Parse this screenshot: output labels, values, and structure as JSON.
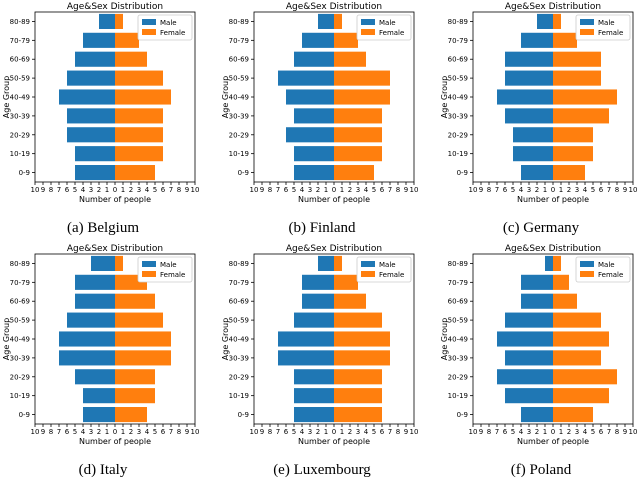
{
  "chart_data": [
    {
      "type": "bar",
      "orientation": "horizontal-population-pyramid",
      "caption": "(a)  Belgium",
      "title": "Age&Sex Distribution",
      "xlabel": "Number of people",
      "ylabel": "Age Group",
      "categories": [
        "0-9",
        "10-19",
        "20-29",
        "30-39",
        "40-49",
        "50-59",
        "60-69",
        "70-79",
        "80-89"
      ],
      "xlim": [
        -10,
        10
      ],
      "xticks": [
        "10",
        "9",
        "8",
        "7",
        "6",
        "5",
        "4",
        "3",
        "2",
        "1",
        "0",
        "1",
        "2",
        "3",
        "4",
        "5",
        "6",
        "7",
        "8",
        "9",
        "10"
      ],
      "legend": [
        "Male",
        "Female"
      ],
      "legend_position": "top-right",
      "series": [
        {
          "name": "Male",
          "values": [
            5,
            5,
            6,
            6,
            7,
            6,
            5,
            4,
            2
          ]
        },
        {
          "name": "Female",
          "values": [
            5,
            6,
            6,
            6,
            7,
            6,
            4,
            3,
            1
          ]
        }
      ]
    },
    {
      "type": "bar",
      "orientation": "horizontal-population-pyramid",
      "caption": "(b)  Finland",
      "title": "Age&Sex Distribution",
      "xlabel": "Number of people",
      "ylabel": "Age Group",
      "categories": [
        "0-9",
        "10-19",
        "20-29",
        "30-39",
        "40-49",
        "50-59",
        "60-69",
        "70-79",
        "80-89"
      ],
      "xlim": [
        -10,
        10
      ],
      "xticks": [
        "10",
        "9",
        "8",
        "7",
        "6",
        "5",
        "4",
        "3",
        "2",
        "1",
        "0",
        "1",
        "2",
        "3",
        "4",
        "5",
        "6",
        "7",
        "8",
        "9",
        "10"
      ],
      "legend": [
        "Male",
        "Female"
      ],
      "legend_position": "top-right",
      "series": [
        {
          "name": "Male",
          "values": [
            5,
            5,
            6,
            5,
            6,
            7,
            5,
            4,
            2
          ]
        },
        {
          "name": "Female",
          "values": [
            5,
            6,
            6,
            6,
            7,
            7,
            4,
            3,
            1
          ]
        }
      ]
    },
    {
      "type": "bar",
      "orientation": "horizontal-population-pyramid",
      "caption": "(c)  Germany",
      "title": "Age&Sex Distribution",
      "xlabel": "Number of people",
      "ylabel": "Age Group",
      "categories": [
        "0-9",
        "10-19",
        "20-29",
        "30-39",
        "40-49",
        "50-59",
        "60-69",
        "70-79",
        "80-89"
      ],
      "xlim": [
        -10,
        10
      ],
      "xticks": [
        "10",
        "9",
        "8",
        "7",
        "6",
        "5",
        "4",
        "3",
        "2",
        "1",
        "0",
        "1",
        "2",
        "3",
        "4",
        "5",
        "6",
        "7",
        "8",
        "9",
        "10"
      ],
      "legend": [
        "Male",
        "Female"
      ],
      "legend_position": "top-right",
      "series": [
        {
          "name": "Male",
          "values": [
            4,
            5,
            5,
            6,
            7,
            6,
            6,
            4,
            2
          ]
        },
        {
          "name": "Female",
          "values": [
            4,
            5,
            5,
            7,
            8,
            6,
            6,
            3,
            1
          ]
        }
      ]
    },
    {
      "type": "bar",
      "orientation": "horizontal-population-pyramid",
      "caption": "(d)  Italy",
      "title": "Age&Sex Distribution",
      "xlabel": "Number of people",
      "ylabel": "Age Group",
      "categories": [
        "0-9",
        "10-19",
        "20-29",
        "30-39",
        "40-49",
        "50-59",
        "60-69",
        "70-79",
        "80-89"
      ],
      "xlim": [
        -10,
        10
      ],
      "xticks": [
        "10",
        "9",
        "8",
        "7",
        "6",
        "5",
        "4",
        "3",
        "2",
        "1",
        "0",
        "1",
        "2",
        "3",
        "4",
        "5",
        "6",
        "7",
        "8",
        "9",
        "10"
      ],
      "legend": [
        "Male",
        "Female"
      ],
      "legend_position": "top-right",
      "series": [
        {
          "name": "Male",
          "values": [
            4,
            4,
            5,
            7,
            7,
            6,
            5,
            5,
            3
          ]
        },
        {
          "name": "Female",
          "values": [
            4,
            5,
            5,
            7,
            7,
            6,
            5,
            4,
            1
          ]
        }
      ]
    },
    {
      "type": "bar",
      "orientation": "horizontal-population-pyramid",
      "caption": "(e)  Luxembourg",
      "title": "Age&Sex Distribution",
      "xlabel": "Number of people",
      "ylabel": "Age Group",
      "categories": [
        "0-9",
        "10-19",
        "20-29",
        "30-39",
        "40-49",
        "50-59",
        "60-69",
        "70-79",
        "80-89"
      ],
      "xlim": [
        -10,
        10
      ],
      "xticks": [
        "10",
        "9",
        "8",
        "7",
        "6",
        "5",
        "4",
        "3",
        "2",
        "1",
        "0",
        "1",
        "2",
        "3",
        "4",
        "5",
        "6",
        "7",
        "8",
        "9",
        "10"
      ],
      "legend": [
        "Male",
        "Female"
      ],
      "legend_position": "top-right",
      "series": [
        {
          "name": "Male",
          "values": [
            5,
            5,
            5,
            7,
            7,
            5,
            4,
            4,
            2
          ]
        },
        {
          "name": "Female",
          "values": [
            6,
            6,
            6,
            7,
            7,
            6,
            4,
            3,
            1
          ]
        }
      ]
    },
    {
      "type": "bar",
      "orientation": "horizontal-population-pyramid",
      "caption": "(f)  Poland",
      "title": "Age&Sex Distribution",
      "xlabel": "Number of people",
      "ylabel": "Age Group",
      "categories": [
        "0-9",
        "10-19",
        "20-29",
        "30-39",
        "40-49",
        "50-59",
        "60-69",
        "70-79",
        "80-89"
      ],
      "xlim": [
        -10,
        10
      ],
      "xticks": [
        "10",
        "9",
        "8",
        "7",
        "6",
        "5",
        "4",
        "3",
        "2",
        "1",
        "0",
        "1",
        "2",
        "3",
        "4",
        "5",
        "6",
        "7",
        "8",
        "9",
        "10"
      ],
      "legend": [
        "Male",
        "Female"
      ],
      "legend_position": "top-right",
      "series": [
        {
          "name": "Male",
          "values": [
            4,
            6,
            7,
            6,
            7,
            6,
            4,
            4,
            1
          ]
        },
        {
          "name": "Female",
          "values": [
            5,
            7,
            8,
            6,
            7,
            6,
            3,
            2,
            1
          ]
        }
      ]
    }
  ],
  "colors": {
    "male": "#1f77b4",
    "female": "#ff7f0e",
    "legend_border": "#cccccc"
  }
}
